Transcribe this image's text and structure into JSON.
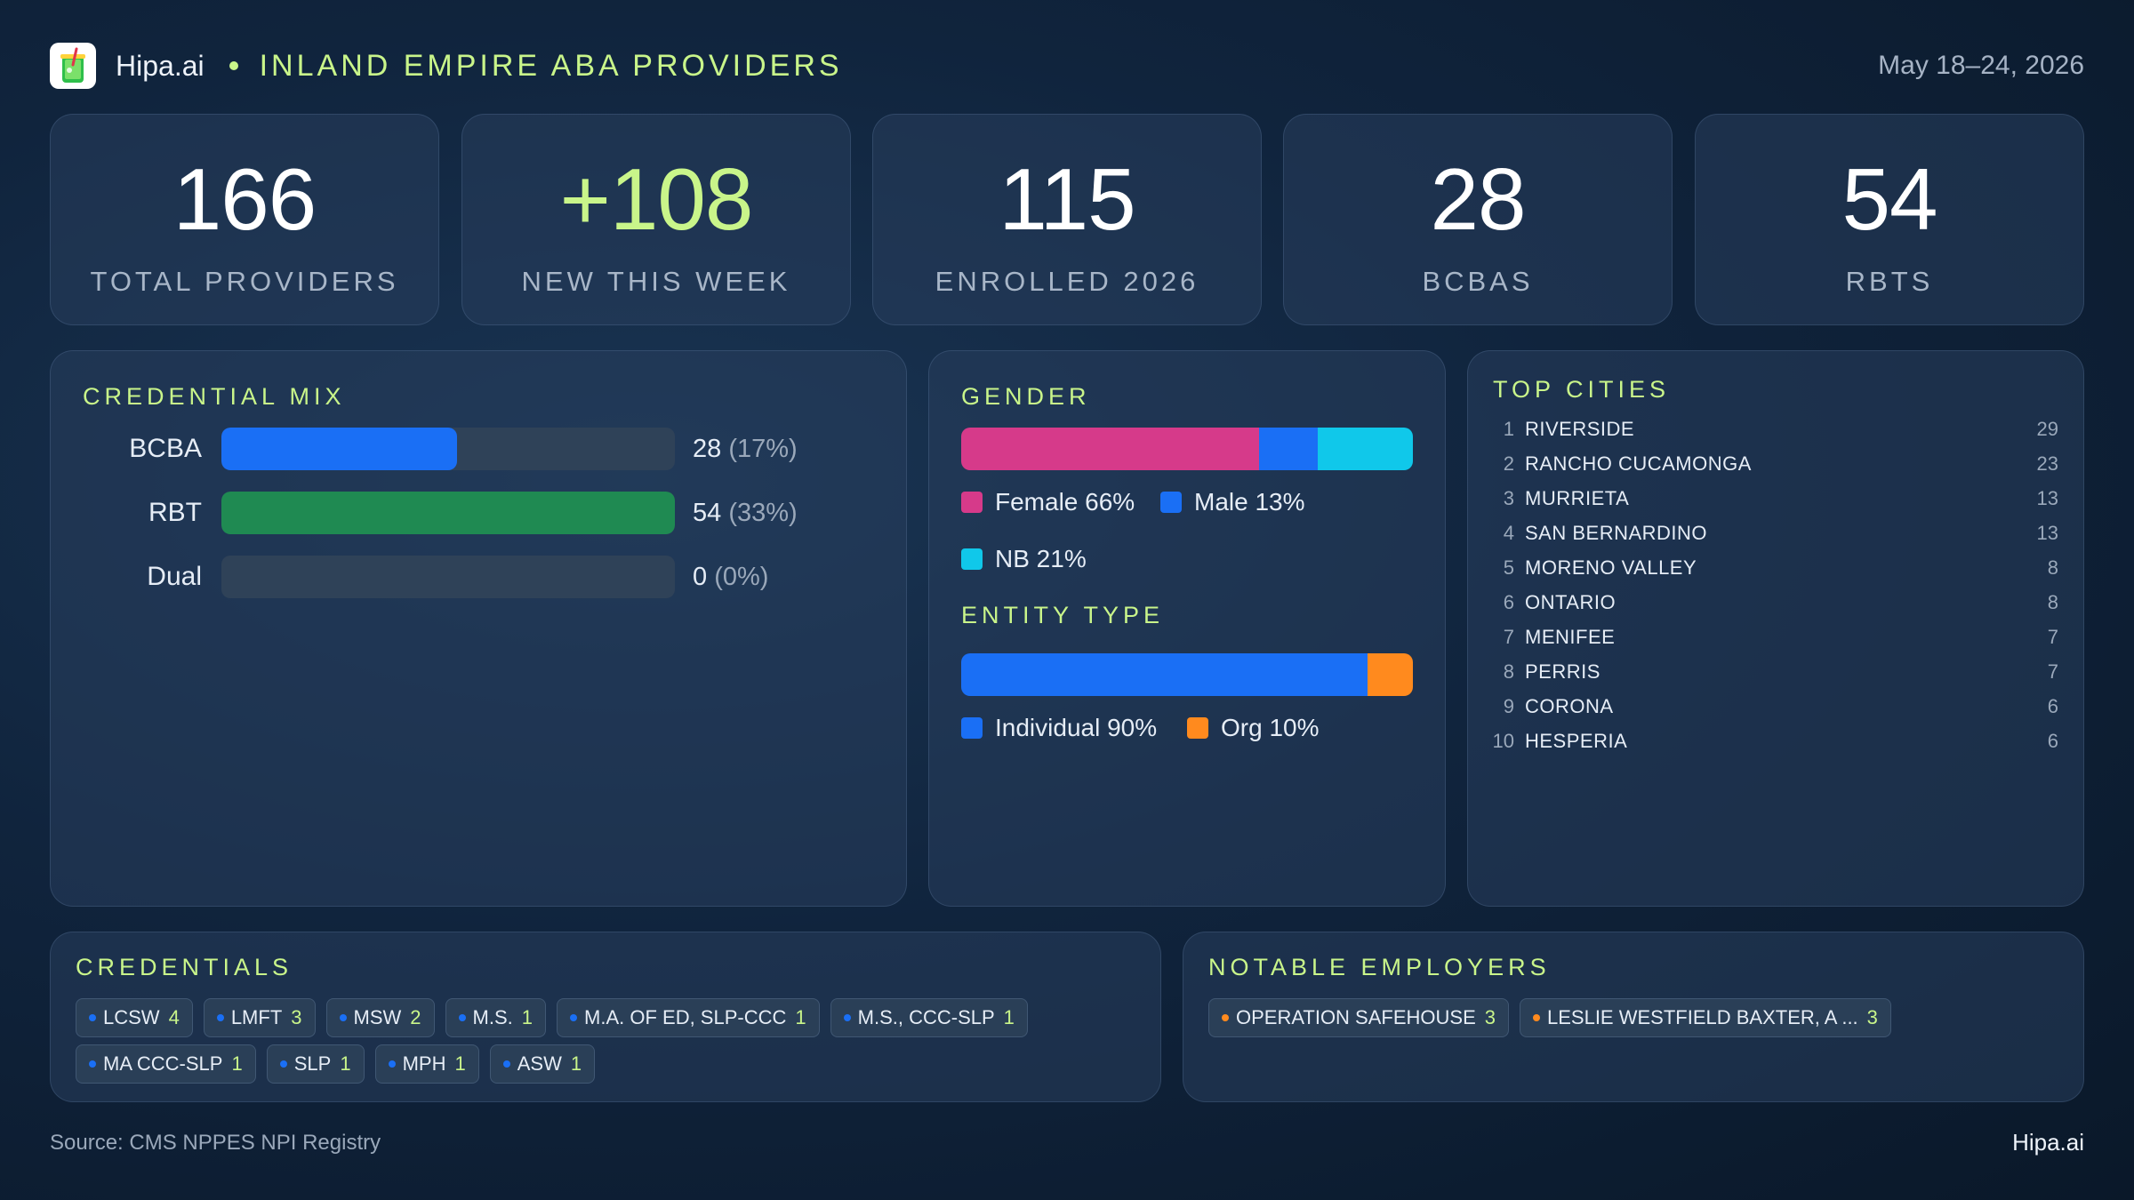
{
  "header": {
    "brand": "Hipa.ai",
    "title": "INLAND EMPIRE ABA PROVIDERS",
    "date_range": "May 18–24, 2026"
  },
  "kpis": [
    {
      "value": "166",
      "label": "TOTAL PROVIDERS"
    },
    {
      "value": "+108",
      "label": "NEW THIS WEEK"
    },
    {
      "value": "115",
      "label": "ENROLLED 2026"
    },
    {
      "value": "28",
      "label": "BCBAS"
    },
    {
      "value": "54",
      "label": "RBTS"
    }
  ],
  "credential_mix": {
    "title": "CREDENTIAL MIX",
    "rows": [
      {
        "label": "BCBA",
        "count": "28",
        "pct": "(17%)",
        "fraction": 0.52,
        "color": "#1a6ff5"
      },
      {
        "label": "RBT",
        "count": "54",
        "pct": "(33%)",
        "fraction": 1.0,
        "color": "#1f8a52"
      },
      {
        "label": "Dual",
        "count": "0",
        "pct": "(0%)",
        "fraction": 0.0,
        "color": "#1a6ff5"
      }
    ]
  },
  "gender": {
    "title": "GENDER",
    "segments": [
      {
        "label": "Female 66%",
        "share": 66,
        "color": "#d63a8a"
      },
      {
        "label": "Male 13%",
        "share": 13,
        "color": "#1a6ff5"
      },
      {
        "label": "NB 21%",
        "share": 21,
        "color": "#10c8ea"
      }
    ]
  },
  "entity_type": {
    "title": "ENTITY TYPE",
    "segments": [
      {
        "label": "Individual 90%",
        "share": 90,
        "color": "#1a6ff5"
      },
      {
        "label": "Org 10%",
        "share": 10,
        "color": "#ff8a1e"
      }
    ]
  },
  "top_cities": {
    "title": "TOP CITIES",
    "items": [
      {
        "rank": "1",
        "name": "RIVERSIDE",
        "count": "29"
      },
      {
        "rank": "2",
        "name": "RANCHO CUCAMONGA",
        "count": "23"
      },
      {
        "rank": "3",
        "name": "MURRIETA",
        "count": "13"
      },
      {
        "rank": "4",
        "name": "SAN BERNARDINO",
        "count": "13"
      },
      {
        "rank": "5",
        "name": "MORENO VALLEY",
        "count": "8"
      },
      {
        "rank": "6",
        "name": "ONTARIO",
        "count": "8"
      },
      {
        "rank": "7",
        "name": "MENIFEE",
        "count": "7"
      },
      {
        "rank": "8",
        "name": "PERRIS",
        "count": "7"
      },
      {
        "rank": "9",
        "name": "CORONA",
        "count": "6"
      },
      {
        "rank": "10",
        "name": "HESPERIA",
        "count": "6"
      }
    ]
  },
  "credentials": {
    "title": "CREDENTIALS",
    "dot_color": "#1a6ff5",
    "chips": [
      {
        "label": "LCSW",
        "count": "4"
      },
      {
        "label": "LMFT",
        "count": "3"
      },
      {
        "label": "MSW",
        "count": "2"
      },
      {
        "label": "M.S.",
        "count": "1"
      },
      {
        "label": "M.A. OF ED, SLP-CCC",
        "count": "1"
      },
      {
        "label": "M.S., CCC-SLP",
        "count": "1"
      },
      {
        "label": "MA CCC-SLP",
        "count": "1"
      },
      {
        "label": "SLP",
        "count": "1"
      },
      {
        "label": "MPH",
        "count": "1"
      },
      {
        "label": "ASW",
        "count": "1"
      }
    ]
  },
  "notable_employers": {
    "title": "NOTABLE EMPLOYERS",
    "dot_color": "#ff8a1e",
    "chips": [
      {
        "label": "OPERATION SAFEHOUSE",
        "count": "3"
      },
      {
        "label": "LESLIE WESTFIELD BAXTER, A ...",
        "count": "3"
      }
    ]
  },
  "footer": {
    "source": "Source: CMS NPPES NPI Registry",
    "brand": "Hipa.ai"
  }
}
